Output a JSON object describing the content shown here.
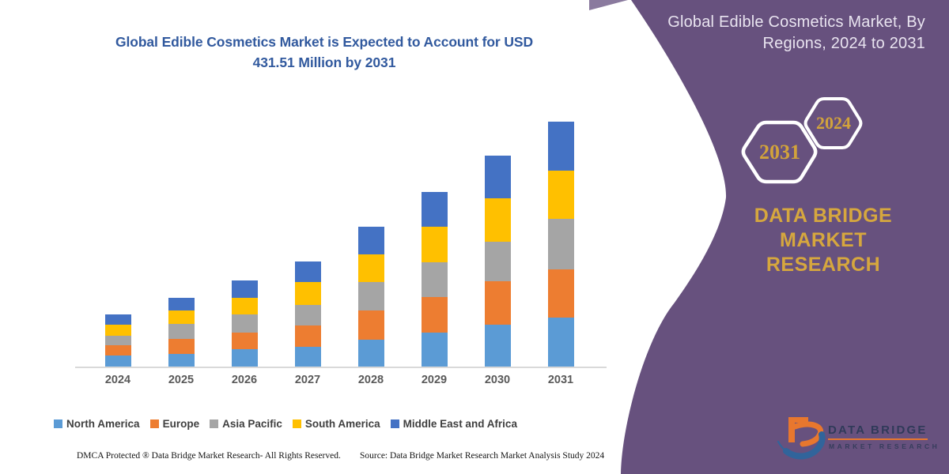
{
  "page": {
    "background": "#FFFFFF"
  },
  "chart": {
    "title_line1": "Global Edible Cosmetics Market is Expected to Account for USD",
    "title_line2": "431.51 Million by 2031",
    "title_color": "#31599E"
  },
  "chart_data": {
    "type": "bar",
    "stacked": true,
    "title": "Global Edible Cosmetics Market is Expected to Account for USD 431.51 Million by 2031",
    "unit": "USD Million",
    "categories": [
      "2024",
      "2025",
      "2026",
      "2027",
      "2028",
      "2029",
      "2030",
      "2031"
    ],
    "series": [
      {
        "name": "North America",
        "color": "#5B9BD5",
        "values": [
          19.1,
          22.3,
          31.0,
          34.4,
          47.7,
          60.3,
          73.4,
          85.9
        ]
      },
      {
        "name": "Europe",
        "color": "#ED7D31",
        "values": [
          18.5,
          26.9,
          28.8,
          38.6,
          51.1,
          62.6,
          76.6,
          84.9
        ]
      },
      {
        "name": "Asia Pacific",
        "color": "#A5A5A5",
        "values": [
          16.3,
          26.4,
          32.4,
          35.8,
          49.7,
          60.3,
          70.6,
          89.1
        ]
      },
      {
        "name": "South America",
        "color": "#FFC000",
        "values": [
          19.5,
          23.2,
          29.2,
          40.8,
          48.7,
          62.6,
          76.6,
          85.9
        ]
      },
      {
        "name": "Middle East and Africa",
        "color": "#4472C4",
        "values": [
          18.5,
          22.7,
          30.2,
          35.8,
          49.1,
          61.7,
          74.2,
          85.7
        ]
      }
    ],
    "totals_by_year": [
      91.9,
      121.5,
      151.6,
      185.4,
      246.3,
      307.5,
      371.4,
      431.5
    ],
    "legend_position": "bottom",
    "grid": false,
    "axis": {
      "baseline_color": "#D9D9D9",
      "label_color": "#595959"
    }
  },
  "panel": {
    "background": "#67517E",
    "title_line1": "Global Edible Cosmetics Market, By",
    "title_line2": "Regions, 2024 to 2031",
    "hexagon_left": "2031",
    "hexagon_right": "2024",
    "brand_line1": "DATA BRIDGE MARKET",
    "brand_line2": "RESEARCH",
    "accent_gold": "#D6A73E"
  },
  "logo": {
    "name": "DATA BRIDGE",
    "subtitle": "MARKET RESEARCH",
    "orange": "#E8772E",
    "blue": "#31649B"
  },
  "footer": {
    "dmca": "DMCA Protected ® Data Bridge Market Research-  All Rights Reserved.",
    "source": "Source: Data Bridge Market Research  Market Analysis Study 2024"
  }
}
